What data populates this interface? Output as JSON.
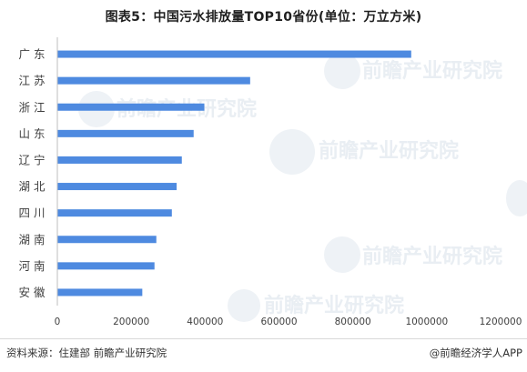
{
  "title": "图表5：中国污水排放量TOP10省份(单位：万立方米)",
  "source": "资料来源：住建部 前瞻产业研究院",
  "credit": "@前瞻经济学人APP",
  "watermark": "前瞻产业研究院",
  "colors": {
    "bar": "#4e8ae0",
    "axis": "#bfbfbf",
    "text": "#404040"
  },
  "chart_data": {
    "type": "bar",
    "orientation": "horizontal",
    "categories": [
      "广 东",
      "江 苏",
      "浙 江",
      "山 东",
      "辽 宁",
      "湖 北",
      "四 川",
      "湖 南",
      "河 南",
      "安 徽"
    ],
    "values": [
      958000,
      522000,
      398000,
      369000,
      337000,
      323000,
      310000,
      268000,
      263000,
      230000
    ],
    "xlim": [
      0,
      1200000
    ],
    "xticks": [
      0,
      200000,
      400000,
      600000,
      800000,
      1000000,
      1200000
    ],
    "grid": false,
    "legend": false
  }
}
